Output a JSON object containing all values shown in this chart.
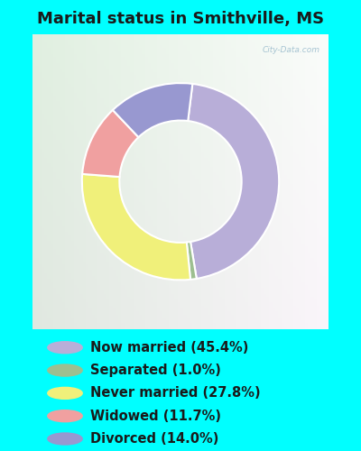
{
  "title": "Marital status in Smithville, MS",
  "categories": [
    "Now married",
    "Separated",
    "Never married",
    "Widowed",
    "Divorced"
  ],
  "values": [
    45.4,
    1.0,
    27.8,
    11.7,
    14.0
  ],
  "colors": [
    "#b8aed8",
    "#9dbf90",
    "#f0f07a",
    "#f0a0a0",
    "#9898d0"
  ],
  "legend_colors": [
    "#b8aed8",
    "#9dbf90",
    "#f0f07a",
    "#f0a0a0",
    "#9898d0"
  ],
  "background_cyan": "#00ffff",
  "chart_bg": "#e8f2e8",
  "title_color": "#1a1a1a",
  "title_fontsize": 13,
  "legend_fontsize": 10.5,
  "donut_width": 0.38,
  "startangle": 83,
  "legend_labels": [
    "Now married (45.4%)",
    "Separated (1.0%)",
    "Never married (27.8%)",
    "Widowed (11.7%)",
    "Divorced (14.0%)"
  ]
}
